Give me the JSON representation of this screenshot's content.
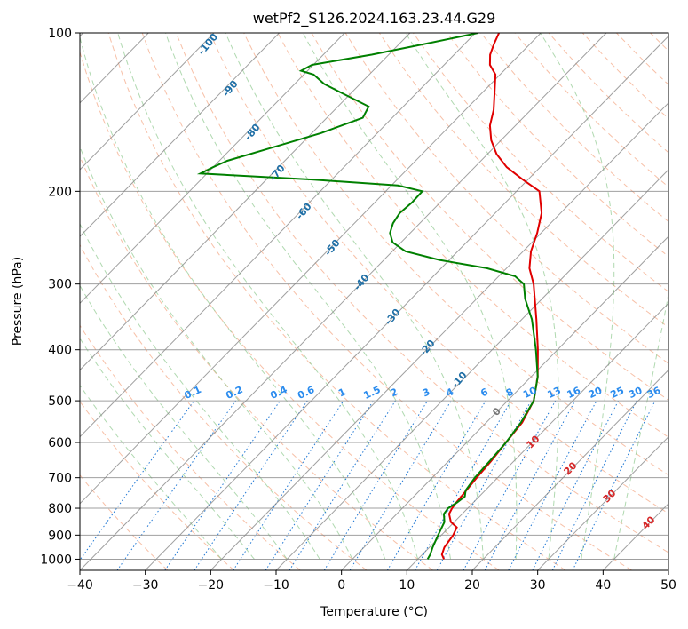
{
  "chart_data": {
    "type": "line",
    "subtype": "skew-t log-p diagram",
    "title": "wetPf2_S126.2024.163.23.44.G29",
    "xlabel": "Temperature (°C)",
    "ylabel": "Pressure (hPa)",
    "xlim": [
      -40,
      50
    ],
    "ylim": [
      1050,
      100
    ],
    "yscale": "log",
    "x_ticks": [
      -40,
      -30,
      -20,
      -10,
      0,
      10,
      20,
      30,
      40,
      50
    ],
    "y_ticks": [
      100,
      200,
      300,
      400,
      500,
      600,
      700,
      800,
      900,
      1000
    ],
    "grid": true,
    "series": [
      {
        "color": "#e00000",
        "points": [
          [
            1000,
            14.0
          ],
          [
            980,
            13.0
          ],
          [
            950,
            12.3
          ],
          [
            900,
            11.8
          ],
          [
            870,
            11.2
          ],
          [
            850,
            9.5
          ],
          [
            820,
            8.0
          ],
          [
            800,
            7.6
          ],
          [
            780,
            7.4
          ],
          [
            750,
            7.2
          ],
          [
            700,
            6.8
          ],
          [
            650,
            6.5
          ],
          [
            600,
            6.0
          ],
          [
            550,
            5.5
          ],
          [
            500,
            4.0
          ],
          [
            450,
            1.0
          ],
          [
            400,
            -3.0
          ],
          [
            350,
            -7.8
          ],
          [
            300,
            -13.5
          ],
          [
            280,
            -16.5
          ],
          [
            260,
            -18.8
          ],
          [
            240,
            -20.6
          ],
          [
            220,
            -22.9
          ],
          [
            200,
            -26.5
          ],
          [
            190,
            -30.8
          ],
          [
            180,
            -35.1
          ],
          [
            170,
            -38.6
          ],
          [
            160,
            -41.5
          ],
          [
            150,
            -43.9
          ],
          [
            140,
            -45.7
          ],
          [
            130,
            -48.1
          ],
          [
            120,
            -50.7
          ],
          [
            115,
            -53.0
          ],
          [
            110,
            -54.5
          ],
          [
            105,
            -55.5
          ],
          [
            100,
            -56.4
          ]
        ]
      },
      {
        "color": "#008000",
        "points": [
          [
            1000,
            11.5
          ],
          [
            980,
            11.2
          ],
          [
            950,
            10.5
          ],
          [
            900,
            9.5
          ],
          [
            850,
            8.5
          ],
          [
            820,
            7.2
          ],
          [
            800,
            7.0
          ],
          [
            780,
            7.5
          ],
          [
            760,
            7.8
          ],
          [
            740,
            7.0
          ],
          [
            700,
            6.5
          ],
          [
            650,
            6.3
          ],
          [
            600,
            6.0
          ],
          [
            550,
            5.3
          ],
          [
            500,
            4.0
          ],
          [
            450,
            1.0
          ],
          [
            400,
            -3.3
          ],
          [
            350,
            -8.5
          ],
          [
            320,
            -12.6
          ],
          [
            300,
            -15.0
          ],
          [
            290,
            -17.5
          ],
          [
            280,
            -23.0
          ],
          [
            270,
            -31.5
          ],
          [
            260,
            -38.0
          ],
          [
            250,
            -41.3
          ],
          [
            240,
            -43.1
          ],
          [
            230,
            -44.1
          ],
          [
            220,
            -44.6
          ],
          [
            210,
            -44.3
          ],
          [
            200,
            -44.4
          ],
          [
            195,
            -49.0
          ],
          [
            190,
            -63.0
          ],
          [
            185,
            -81.0
          ],
          [
            180,
            -80.0
          ],
          [
            175,
            -78.8
          ],
          [
            165,
            -73.8
          ],
          [
            155,
            -68.6
          ],
          [
            145,
            -64.5
          ],
          [
            138,
            -65.3
          ],
          [
            130,
            -71.5
          ],
          [
            125,
            -75.5
          ],
          [
            120,
            -78.5
          ],
          [
            118,
            -81.0
          ],
          [
            115,
            -80.2
          ],
          [
            110,
            -72.6
          ],
          [
            105,
            -66.2
          ],
          [
            100,
            -59.6
          ]
        ]
      }
    ],
    "dry_adiabat_labels": [
      "-100",
      "-90",
      "-80",
      "-70",
      "-60",
      "-50",
      "-40",
      "-30",
      "-20",
      "-10"
    ],
    "mixing_ratio_labels": [
      "0.1",
      "0.2",
      "0.4",
      "0.6",
      "1",
      "1.5",
      "2",
      "3",
      "4",
      "6",
      "8",
      "10",
      "13",
      "16",
      "20",
      "25",
      "30",
      "36"
    ],
    "moist_adiabat_labels": [
      "0",
      "10",
      "20",
      "30",
      "40"
    ],
    "colors": {
      "temperature": "#e00000",
      "dewpoint": "#008000",
      "isotherm": "#888888",
      "dry_adiabat": "#f4a582",
      "moist_adiabat": "#8fc98f",
      "mixing_ratio": "#1f77d4",
      "dry_label": "#1f6fa6",
      "mixing_label": "#2b8cee",
      "moist_label": "#d62728"
    }
  }
}
